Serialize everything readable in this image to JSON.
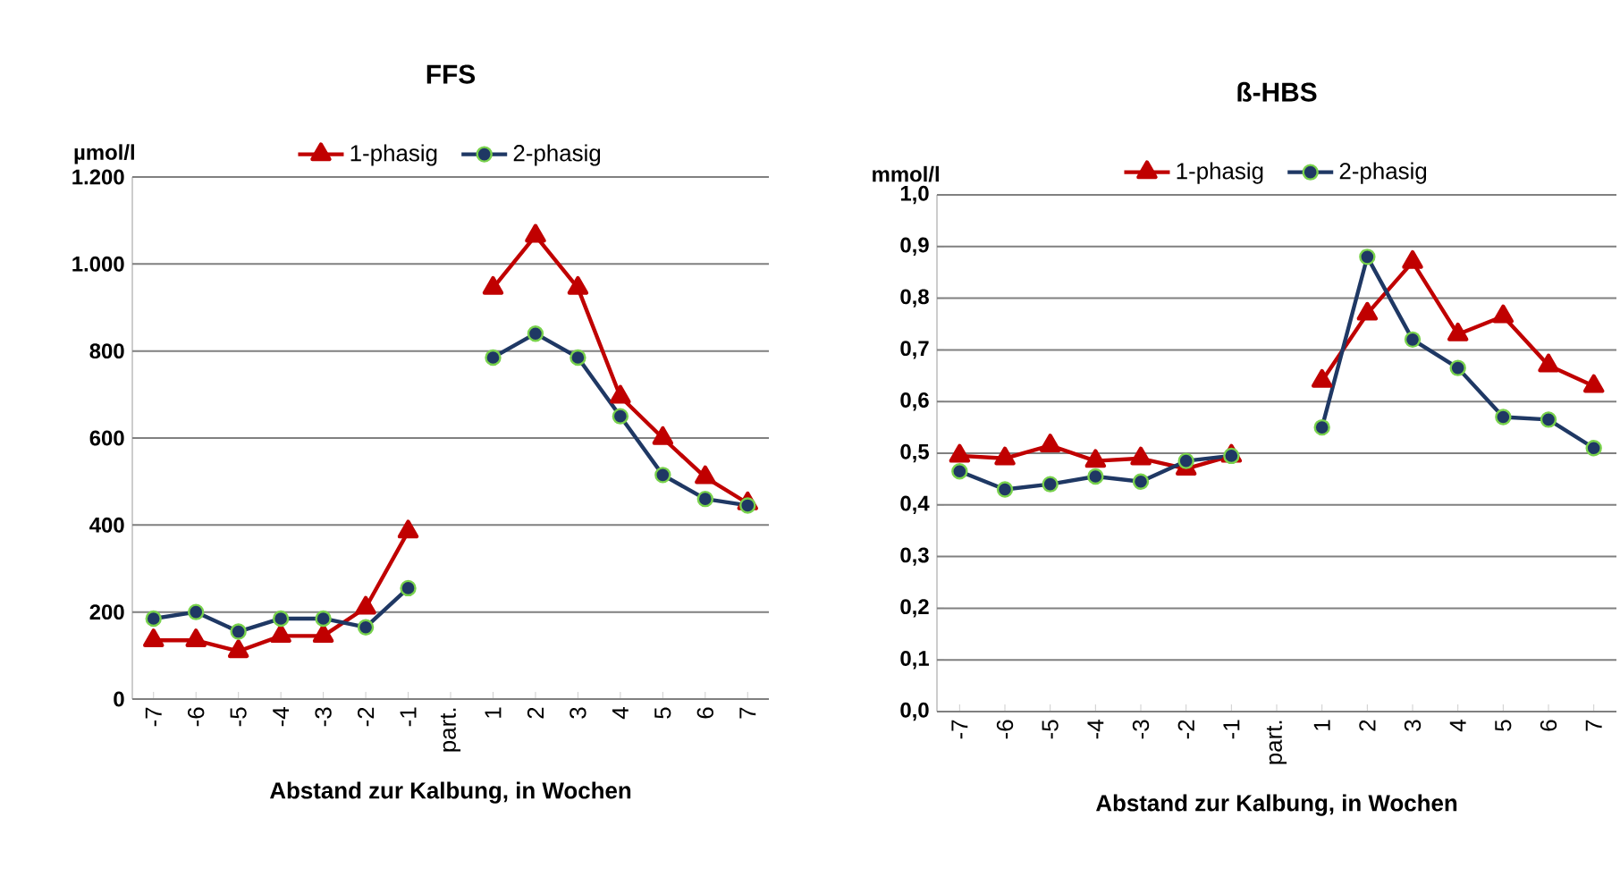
{
  "chart_data": [
    {
      "type": "line",
      "title": "FFS",
      "ylabel": "µmol/l",
      "xlabel": "Abstand zur Kalbung, in Wochen",
      "categories": [
        "-7",
        "-6",
        "-5",
        "-4",
        "-3",
        "-2",
        "-1",
        "part.",
        "1",
        "2",
        "3",
        "4",
        "5",
        "6",
        "7"
      ],
      "series": [
        {
          "name": "1-phasig",
          "color": "#c00000",
          "marker": "triangle",
          "values": [
            135,
            135,
            110,
            145,
            145,
            210,
            385,
            null,
            945,
            1065,
            945,
            695,
            600,
            510,
            450
          ]
        },
        {
          "name": "2-phasig",
          "color": "#1f3864",
          "marker": "circle",
          "values": [
            185,
            200,
            155,
            185,
            185,
            165,
            255,
            null,
            785,
            840,
            785,
            650,
            515,
            460,
            445
          ]
        }
      ],
      "ylim": [
        0,
        1200
      ],
      "yticks": [
        0,
        200,
        400,
        600,
        800,
        {
          "value": 1000,
          "label": "1.000"
        },
        {
          "value": 1200,
          "label": "1.200"
        }
      ],
      "grid": "y",
      "legend": "top"
    },
    {
      "type": "line",
      "title": "ß-HBS",
      "ylabel": "mmol/l",
      "xlabel": "Abstand zur Kalbung, in Wochen",
      "categories": [
        "-7",
        "-6",
        "-5",
        "-4",
        "-3",
        "-2",
        "-1",
        "part.",
        "1",
        "2",
        "3",
        "4",
        "5",
        "6",
        "7"
      ],
      "series": [
        {
          "name": "1-phasig",
          "color": "#c00000",
          "marker": "triangle",
          "values": [
            0.495,
            0.49,
            0.515,
            0.485,
            0.49,
            0.47,
            0.495,
            null,
            0.64,
            0.77,
            0.87,
            0.73,
            0.765,
            0.67,
            0.63
          ]
        },
        {
          "name": "2-phasig",
          "color": "#1f3864",
          "marker": "circle",
          "values": [
            0.465,
            0.43,
            0.44,
            0.455,
            0.445,
            0.485,
            0.495,
            null,
            0.55,
            0.88,
            0.72,
            0.665,
            0.57,
            0.565,
            0.51
          ]
        }
      ],
      "ylim": [
        0,
        1.0
      ],
      "yticks": [
        {
          "value": 0,
          "label": "0,0"
        },
        {
          "value": 0.1,
          "label": "0,1"
        },
        {
          "value": 0.2,
          "label": "0,2"
        },
        {
          "value": 0.3,
          "label": "0,3"
        },
        {
          "value": 0.4,
          "label": "0,4"
        },
        {
          "value": 0.5,
          "label": "0,5"
        },
        {
          "value": 0.6,
          "label": "0,6"
        },
        {
          "value": 0.7,
          "label": "0,7"
        },
        {
          "value": 0.8,
          "label": "0,8"
        },
        {
          "value": 0.9,
          "label": "0,9"
        },
        {
          "value": 1.0,
          "label": "1,0"
        }
      ],
      "grid": "y",
      "legend": "top"
    }
  ]
}
